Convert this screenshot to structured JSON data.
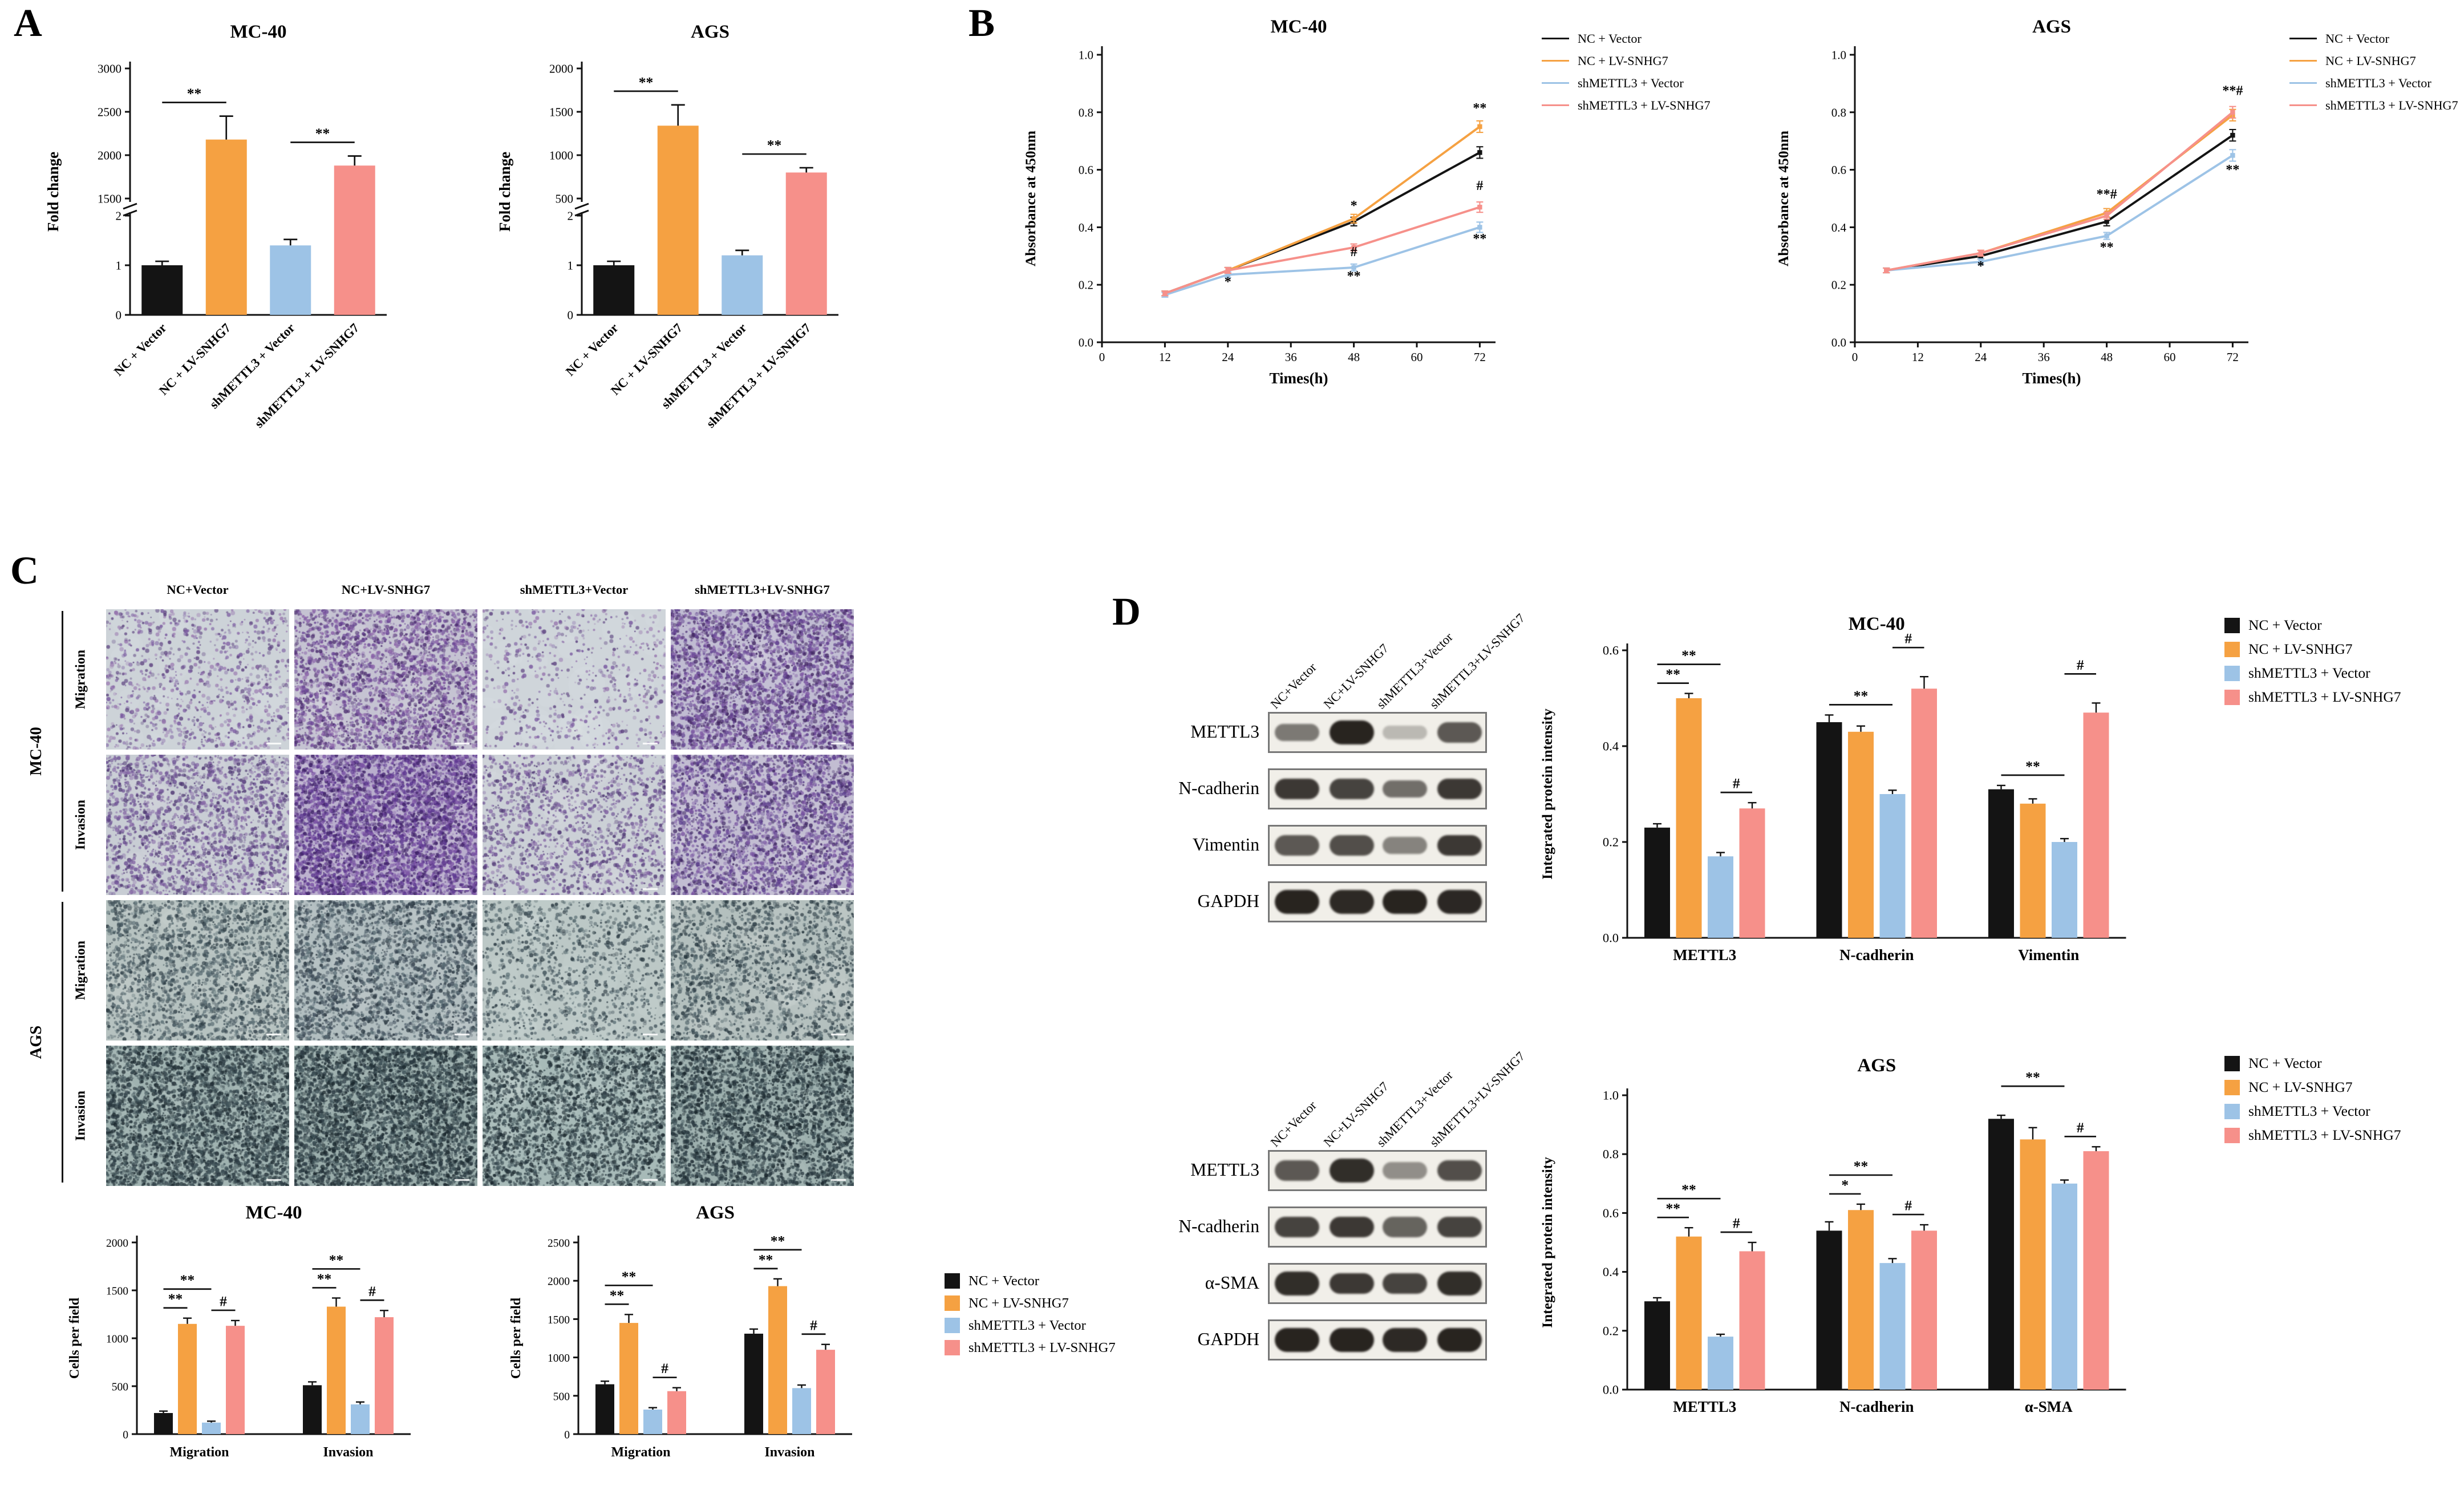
{
  "figure": {
    "panels": {
      "a": "A",
      "b": "B",
      "c": "C",
      "d": "D"
    }
  },
  "palette": {
    "series_colors": [
      "#141414",
      "#F5A142",
      "#9DC3E6",
      "#F6908A"
    ]
  },
  "series_labels": [
    "NC + Vector",
    "NC + LV-SNHG7",
    "shMETTL3 + Vector",
    "shMETTL3 + LV-SNHG7"
  ],
  "chart_data": [
    {
      "id": "panelA_MC40",
      "panel": "A",
      "type": "bar",
      "broken_axis": true,
      "title": "MC-40",
      "ylabel": "Fold change",
      "categories": [
        "NC + Vector",
        "NC + LV-SNHG7",
        "shMETTL3 + Vector",
        "shMETTL3 + LV-SNHG7"
      ],
      "values": [
        1.0,
        2180,
        1.4,
        1880
      ],
      "errors": [
        0.08,
        270,
        0.12,
        110
      ],
      "lower_ticks": [
        0,
        1,
        2
      ],
      "upper_ticks": [
        1500,
        2000,
        2500,
        3000
      ],
      "significance": [
        {
          "from": 0,
          "to": 1,
          "label": "**"
        },
        {
          "from": 2,
          "to": 3,
          "label": "**"
        }
      ]
    },
    {
      "id": "panelA_AGS",
      "panel": "A",
      "type": "bar",
      "broken_axis": true,
      "title": "AGS",
      "ylabel": "Fold change",
      "categories": [
        "NC + Vector",
        "NC + LV-SNHG7",
        "shMETTL3 + Vector",
        "shMETTL3 + LV-SNHG7"
      ],
      "values": [
        1.0,
        1340,
        1.2,
        800
      ],
      "errors": [
        0.08,
        240,
        0.1,
        55
      ],
      "lower_ticks": [
        0,
        1,
        2
      ],
      "upper_ticks": [
        500,
        1000,
        1500,
        2000
      ],
      "significance": [
        {
          "from": 0,
          "to": 1,
          "label": "**"
        },
        {
          "from": 2,
          "to": 3,
          "label": "**"
        }
      ]
    },
    {
      "id": "panelB_MC40",
      "panel": "B",
      "type": "line",
      "title": "MC-40",
      "xlabel": "Times(h)",
      "ylabel": "Absorbance at 450nm",
      "x": [
        12,
        24,
        48,
        72
      ],
      "xticks": [
        0,
        12,
        24,
        36,
        48,
        60,
        72
      ],
      "yticks": [
        0,
        0.2,
        0.4,
        0.6,
        0.8,
        1
      ],
      "series": [
        {
          "name": "NC + Vector",
          "values": [
            0.17,
            0.25,
            0.42,
            0.66
          ],
          "errors": [
            0.008,
            0.01,
            0.015,
            0.02
          ]
        },
        {
          "name": "NC + LV-SNHG7",
          "values": [
            0.17,
            0.25,
            0.43,
            0.75
          ],
          "errors": [
            0.008,
            0.01,
            0.015,
            0.02
          ]
        },
        {
          "name": "shMETTL3 + Vector",
          "values": [
            0.165,
            0.235,
            0.26,
            0.4
          ],
          "errors": [
            0.008,
            0.01,
            0.012,
            0.018
          ]
        },
        {
          "name": "shMETTL3 + LV-SNHG7",
          "values": [
            0.17,
            0.25,
            0.33,
            0.47
          ],
          "errors": [
            0.008,
            0.01,
            0.012,
            0.018
          ]
        }
      ],
      "annotations": [
        {
          "x": 24,
          "y": 0.195,
          "text": "*"
        },
        {
          "x": 48,
          "y": 0.46,
          "text": "*"
        },
        {
          "x": 48,
          "y": 0.3,
          "text": "#"
        },
        {
          "x": 48,
          "y": 0.215,
          "text": "**"
        },
        {
          "x": 72,
          "y": 0.8,
          "text": "**"
        },
        {
          "x": 72,
          "y": 0.53,
          "text": "#"
        },
        {
          "x": 72,
          "y": 0.345,
          "text": "**"
        }
      ]
    },
    {
      "id": "panelB_AGS",
      "panel": "B",
      "type": "line",
      "title": "AGS",
      "xlabel": "Times(h)",
      "ylabel": "Absorbance at 450nm",
      "x": [
        6,
        24,
        48,
        72
      ],
      "xticks": [
        0,
        12,
        24,
        36,
        48,
        60,
        72
      ],
      "yticks": [
        0,
        0.2,
        0.4,
        0.6,
        0.8,
        1
      ],
      "series": [
        {
          "name": "NC + Vector",
          "values": [
            0.25,
            0.3,
            0.42,
            0.72
          ],
          "errors": [
            0.008,
            0.01,
            0.015,
            0.02
          ]
        },
        {
          "name": "NC + LV-SNHG7",
          "values": [
            0.25,
            0.31,
            0.45,
            0.79
          ],
          "errors": [
            0.008,
            0.01,
            0.015,
            0.02
          ]
        },
        {
          "name": "shMETTL3 + Vector",
          "values": [
            0.25,
            0.28,
            0.37,
            0.65
          ],
          "errors": [
            0.008,
            0.01,
            0.012,
            0.02
          ]
        },
        {
          "name": "shMETTL3 + LV-SNHG7",
          "values": [
            0.25,
            0.31,
            0.44,
            0.8
          ],
          "errors": [
            0.008,
            0.01,
            0.012,
            0.02
          ]
        }
      ],
      "annotations": [
        {
          "x": 24,
          "y": 0.25,
          "text": "*"
        },
        {
          "x": 48,
          "y": 0.5,
          "text": "**#"
        },
        {
          "x": 48,
          "y": 0.315,
          "text": "**"
        },
        {
          "x": 72,
          "y": 0.86,
          "text": "**#"
        },
        {
          "x": 72,
          "y": 0.585,
          "text": "**"
        }
      ]
    },
    {
      "id": "panelC_MC40",
      "panel": "C",
      "type": "bar",
      "grouped": true,
      "title": "MC-40",
      "ylabel": "Cells per field",
      "groups": [
        "Migration",
        "Invasion"
      ],
      "yticks": [
        0,
        500,
        1000,
        1500,
        2000
      ],
      "series": [
        {
          "name": "NC + Vector",
          "values": [
            220,
            510
          ],
          "errors": [
            20,
            35
          ]
        },
        {
          "name": "NC + LV-SNHG7",
          "values": [
            1150,
            1330
          ],
          "errors": [
            60,
            90
          ]
        },
        {
          "name": "shMETTL3 + Vector",
          "values": [
            120,
            310
          ],
          "errors": [
            15,
            25
          ]
        },
        {
          "name": "shMETTL3 + LV-SNHG7",
          "values": [
            1130,
            1220
          ],
          "errors": [
            55,
            70
          ]
        }
      ],
      "significance": [
        {
          "group": 0,
          "from": 0,
          "to": 1,
          "label": "**",
          "level": 0
        },
        {
          "group": 0,
          "from": 0,
          "to": 2,
          "label": "**",
          "level": 1
        },
        {
          "group": 0,
          "from": 2,
          "to": 3,
          "label": "#",
          "level": 0
        },
        {
          "group": 1,
          "from": 0,
          "to": 1,
          "label": "**",
          "level": 0
        },
        {
          "group": 1,
          "from": 0,
          "to": 2,
          "label": "**",
          "level": 1
        },
        {
          "group": 1,
          "from": 2,
          "to": 3,
          "label": "#",
          "level": 0
        }
      ]
    },
    {
      "id": "panelC_AGS",
      "panel": "C",
      "type": "bar",
      "grouped": true,
      "title": "AGS",
      "ylabel": "Cells per field",
      "groups": [
        "Migration",
        "Invasion"
      ],
      "yticks": [
        0,
        500,
        1000,
        1500,
        2000,
        2500
      ],
      "series": [
        {
          "name": "NC + Vector",
          "values": [
            650,
            1310
          ],
          "errors": [
            40,
            60
          ]
        },
        {
          "name": "NC + LV-SNHG7",
          "values": [
            1450,
            1930
          ],
          "errors": [
            110,
            95
          ]
        },
        {
          "name": "shMETTL3 + Vector",
          "values": [
            320,
            600
          ],
          "errors": [
            25,
            40
          ]
        },
        {
          "name": "shMETTL3 + LV-SNHG7",
          "values": [
            560,
            1100
          ],
          "errors": [
            45,
            70
          ]
        }
      ],
      "significance": [
        {
          "group": 0,
          "from": 0,
          "to": 1,
          "label": "**",
          "level": 0
        },
        {
          "group": 0,
          "from": 0,
          "to": 2,
          "label": "**",
          "level": 1
        },
        {
          "group": 0,
          "from": 2,
          "to": 3,
          "label": "#",
          "level": 0
        },
        {
          "group": 1,
          "from": 0,
          "to": 1,
          "label": "**",
          "level": 0
        },
        {
          "group": 1,
          "from": 0,
          "to": 2,
          "label": "**",
          "level": 1
        },
        {
          "group": 1,
          "from": 2,
          "to": 3,
          "label": "#",
          "level": 0
        }
      ]
    },
    {
      "id": "panelD_MC40",
      "panel": "D",
      "type": "bar",
      "grouped": true,
      "title": "MC-40",
      "ylabel": "Integrated protein intensity",
      "groups": [
        "METTL3",
        "N-cadherin",
        "Vimentin"
      ],
      "yticks": [
        0,
        0.2,
        0.4,
        0.6
      ],
      "series": [
        {
          "name": "NC + Vector",
          "values": [
            0.23,
            0.45,
            0.31
          ],
          "errors": [
            0.008,
            0.015,
            0.008
          ]
        },
        {
          "name": "NC + LV-SNHG7",
          "values": [
            0.5,
            0.43,
            0.28
          ],
          "errors": [
            0.01,
            0.012,
            0.01
          ]
        },
        {
          "name": "shMETTL3 + Vector",
          "values": [
            0.17,
            0.3,
            0.2
          ],
          "errors": [
            0.008,
            0.008,
            0.007
          ]
        },
        {
          "name": "shMETTL3 + LV-SNHG7",
          "values": [
            0.27,
            0.52,
            0.47
          ],
          "errors": [
            0.012,
            0.025,
            0.02
          ]
        }
      ],
      "significance": [
        {
          "group": 0,
          "from": 0,
          "to": 1,
          "label": "**",
          "level": 0
        },
        {
          "group": 0,
          "from": 0,
          "to": 2,
          "label": "**",
          "level": 1
        },
        {
          "group": 0,
          "from": 2,
          "to": 3,
          "label": "#",
          "level": 0
        },
        {
          "group": 1,
          "from": 0,
          "to": 2,
          "label": "**",
          "level": 0
        },
        {
          "group": 1,
          "from": 2,
          "to": 3,
          "label": "#",
          "level": 1
        },
        {
          "group": 2,
          "from": 0,
          "to": 2,
          "label": "**",
          "level": 0
        },
        {
          "group": 2,
          "from": 2,
          "to": 3,
          "label": "#",
          "level": 1
        }
      ]
    },
    {
      "id": "panelD_AGS",
      "panel": "D",
      "type": "bar",
      "grouped": true,
      "title": "AGS",
      "ylabel": "Integrated protein intensity",
      "groups": [
        "METTL3",
        "N-cadherin",
        "α-SMA"
      ],
      "yticks": [
        0,
        0.2,
        0.4,
        0.6,
        0.8,
        1
      ],
      "series": [
        {
          "name": "NC + Vector",
          "values": [
            0.3,
            0.54,
            0.92
          ],
          "errors": [
            0.012,
            0.03,
            0.012
          ]
        },
        {
          "name": "NC + LV-SNHG7",
          "values": [
            0.52,
            0.61,
            0.85
          ],
          "errors": [
            0.03,
            0.02,
            0.04
          ]
        },
        {
          "name": "shMETTL3 + Vector",
          "values": [
            0.18,
            0.43,
            0.7
          ],
          "errors": [
            0.008,
            0.015,
            0.012
          ]
        },
        {
          "name": "shMETTL3 + LV-SNHG7",
          "values": [
            0.47,
            0.54,
            0.81
          ],
          "errors": [
            0.03,
            0.02,
            0.015
          ]
        }
      ],
      "significance": [
        {
          "group": 0,
          "from": 0,
          "to": 1,
          "label": "**",
          "level": 0
        },
        {
          "group": 0,
          "from": 0,
          "to": 2,
          "label": "**",
          "level": 1
        },
        {
          "group": 0,
          "from": 2,
          "to": 3,
          "label": "#",
          "level": 0
        },
        {
          "group": 1,
          "from": 0,
          "to": 1,
          "label": "*",
          "level": 0
        },
        {
          "group": 1,
          "from": 0,
          "to": 2,
          "label": "**",
          "level": 1
        },
        {
          "group": 1,
          "from": 2,
          "to": 3,
          "label": "#",
          "level": 0
        },
        {
          "group": 2,
          "from": 0,
          "to": 2,
          "label": "**",
          "level": 1
        },
        {
          "group": 2,
          "from": 2,
          "to": 3,
          "label": "#",
          "level": 0
        }
      ]
    }
  ],
  "panel_c": {
    "column_headers": [
      "NC+Vector",
      "NC+LV-SNHG7",
      "shMETTL3+Vector",
      "shMETTL3+LV-SNHG7"
    ],
    "row_groups": [
      {
        "label": "MC-40",
        "rows": [
          "Migration",
          "Invasion"
        ]
      },
      {
        "label": "AGS",
        "rows": [
          "Migration",
          "Invasion"
        ]
      }
    ],
    "cells": [
      {
        "bg": "#cdd3d8",
        "dot_colors": [
          "#7a5aa0",
          "#5d4380",
          "#9a7ab0"
        ],
        "density": 1000
      },
      {
        "bg": "#c5c3d2",
        "dot_colors": [
          "#6b4796",
          "#4d2f70",
          "#8a62a8"
        ],
        "density": 2800
      },
      {
        "bg": "#cfd5da",
        "dot_colors": [
          "#7a5aa0",
          "#5d4380",
          "#9a7ab0"
        ],
        "density": 620
      },
      {
        "bg": "#c0bcd2",
        "dot_colors": [
          "#5f3f8e",
          "#452a66",
          "#7e58a4"
        ],
        "density": 3400
      },
      {
        "bg": "#c8cdd4",
        "dot_colors": [
          "#6b4f92",
          "#503a74",
          "#8668a6"
        ],
        "density": 2100
      },
      {
        "bg": "#b9aecd",
        "dot_colors": [
          "#5c3790",
          "#3f2268",
          "#7c54a6"
        ],
        "density": 4600
      },
      {
        "bg": "#cbd0d6",
        "dot_colors": [
          "#6b4f92",
          "#503a74",
          "#8668a6"
        ],
        "density": 1500
      },
      {
        "bg": "#c2bdd2",
        "dot_colors": [
          "#5c3f8e",
          "#422a66",
          "#7a56a2"
        ],
        "density": 2900
      },
      {
        "bg": "#b6c2c0",
        "dot_colors": [
          "#45565e",
          "#2f3e46",
          "#5d7076"
        ],
        "density": 2300
      },
      {
        "bg": "#b2bec0",
        "dot_colors": [
          "#414f5c",
          "#2b3842",
          "#596c74"
        ],
        "density": 2700
      },
      {
        "bg": "#bcc8c6",
        "dot_colors": [
          "#45565e",
          "#2f3e46",
          "#5d7076"
        ],
        "density": 1250
      },
      {
        "bg": "#b4c0be",
        "dot_colors": [
          "#41525a",
          "#2b3a42",
          "#596c72"
        ],
        "density": 1950
      },
      {
        "bg": "#9fb2b0",
        "dot_colors": [
          "#2c3b43",
          "#1e2b31",
          "#41545a"
        ],
        "density": 4200
      },
      {
        "bg": "#9aadab",
        "dot_colors": [
          "#2a3941",
          "#1c292f",
          "#3f5258"
        ],
        "density": 4700
      },
      {
        "bg": "#a7bab8",
        "dot_colors": [
          "#2c3b43",
          "#1e2b31",
          "#41545a"
        ],
        "density": 3100
      },
      {
        "bg": "#9cafad",
        "dot_colors": [
          "#293840",
          "#1b282e",
          "#3e5157"
        ],
        "density": 3700
      }
    ]
  },
  "panel_d": {
    "blots": [
      {
        "cell_line": "MC-40",
        "lanes": [
          "NC+Vector",
          "NC+LV-SNHG7",
          "shMETTL3+Vector",
          "shMETTL3+LV-SNHG7"
        ],
        "rows": [
          {
            "label": "METTL3",
            "bands": [
              0.55,
              0.95,
              0.25,
              0.7
            ]
          },
          {
            "label": "N-cadherin",
            "bands": [
              0.85,
              0.8,
              0.6,
              0.85
            ]
          },
          {
            "label": "Vimentin",
            "bands": [
              0.7,
              0.75,
              0.5,
              0.85
            ]
          },
          {
            "label": "GAPDH",
            "bands": [
              0.95,
              0.92,
              0.95,
              0.93
            ]
          }
        ]
      },
      {
        "cell_line": "AGS",
        "lanes": [
          "NC+Vector",
          "NC+LV-SNHG7",
          "shMETTL3+Vector",
          "shMETTL3+LV-SNHG7"
        ],
        "rows": [
          {
            "label": "METTL3",
            "bands": [
              0.7,
              0.9,
              0.45,
              0.75
            ]
          },
          {
            "label": "N-cadherin",
            "bands": [
              0.8,
              0.85,
              0.65,
              0.8
            ]
          },
          {
            "label": "α-SMA",
            "bands": [
              0.9,
              0.85,
              0.8,
              0.9
            ]
          },
          {
            "label": "GAPDH",
            "bands": [
              0.95,
              0.95,
              0.92,
              0.95
            ]
          }
        ]
      }
    ]
  }
}
